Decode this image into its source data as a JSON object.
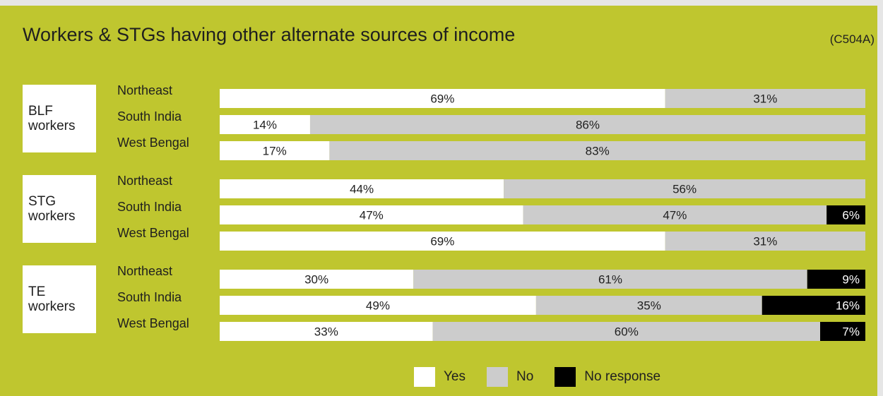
{
  "chart_data": {
    "type": "bar",
    "orientation": "horizontal-stacked-100",
    "title": "Workers & STGs having other alternate sources of income",
    "code": "(C504A)",
    "legend": [
      {
        "name": "Yes",
        "color": "#ffffff"
      },
      {
        "name": "No",
        "color": "#cccccc"
      },
      {
        "name": "No response",
        "color": "#000000"
      }
    ],
    "groups": [
      {
        "label": "BLF workers",
        "rows": [
          {
            "label": "Northeast",
            "yes": 69,
            "no": 31,
            "no_response": 0
          },
          {
            "label": "South India",
            "yes": 14,
            "no": 86,
            "no_response": 0
          },
          {
            "label": "West Bengal",
            "yes": 17,
            "no": 83,
            "no_response": 0
          }
        ]
      },
      {
        "label": "STG workers",
        "rows": [
          {
            "label": "Northeast",
            "yes": 44,
            "no": 56,
            "no_response": 0
          },
          {
            "label": "South India",
            "yes": 47,
            "no": 47,
            "no_response": 6
          },
          {
            "label": "West Bengal",
            "yes": 69,
            "no": 31,
            "no_response": 0
          }
        ]
      },
      {
        "label": "TE workers",
        "rows": [
          {
            "label": "Northeast",
            "yes": 30,
            "no": 61,
            "no_response": 9
          },
          {
            "label": "South India",
            "yes": 49,
            "no": 35,
            "no_response": 16
          },
          {
            "label": "West Bengal",
            "yes": 33,
            "no": 60,
            "no_response": 7
          }
        ]
      }
    ]
  },
  "colors": {
    "background": "#bfc62f",
    "yes": "#ffffff",
    "no": "#cccccc",
    "no_response": "#000000"
  }
}
